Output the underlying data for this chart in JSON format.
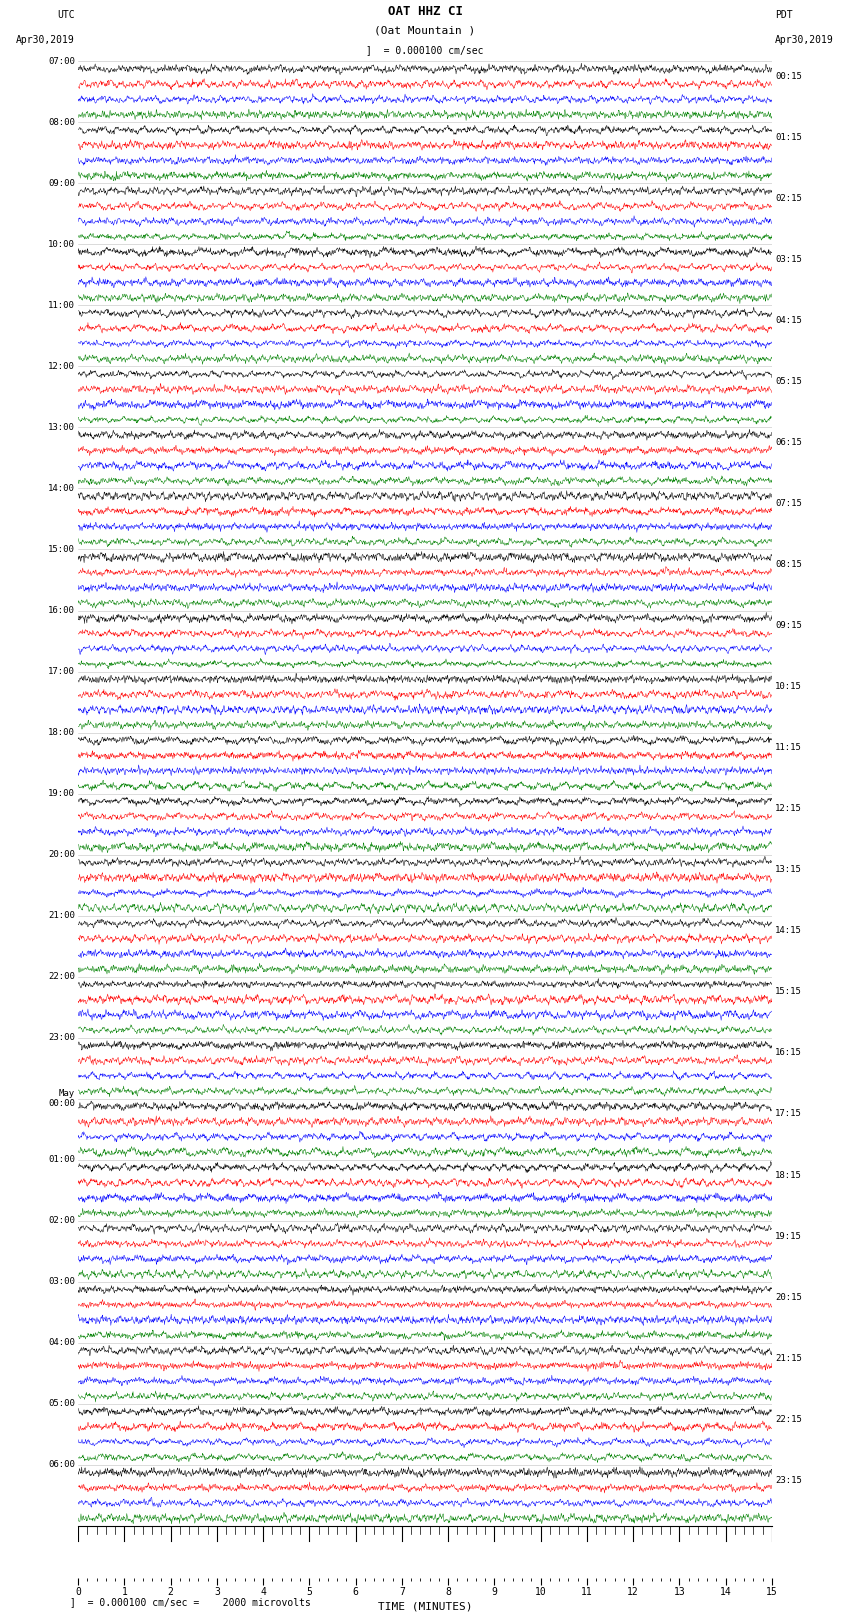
{
  "title_line1": "OAT HHZ CI",
  "title_line2": "(Oat Mountain )",
  "scale_text": "= 0.000100 cm/sec",
  "bottom_scale_text": "= 0.000100 cm/sec =    2000 microvolts",
  "left_label_top": "UTC",
  "left_label_date": "Apr30,2019",
  "right_label_top": "PDT",
  "right_label_date": "Apr30,2019",
  "xlabel": "TIME (MINUTES)",
  "left_times_utc": [
    "07:00",
    "08:00",
    "09:00",
    "10:00",
    "11:00",
    "12:00",
    "13:00",
    "14:00",
    "15:00",
    "16:00",
    "17:00",
    "18:00",
    "19:00",
    "20:00",
    "21:00",
    "22:00",
    "23:00",
    "May\n00:00",
    "01:00",
    "02:00",
    "03:00",
    "04:00",
    "05:00",
    "06:00"
  ],
  "right_times_pdt": [
    "00:15",
    "01:15",
    "02:15",
    "03:15",
    "04:15",
    "05:15",
    "06:15",
    "07:15",
    "08:15",
    "09:15",
    "10:15",
    "11:15",
    "12:15",
    "13:15",
    "14:15",
    "15:15",
    "16:15",
    "17:15",
    "18:15",
    "19:15",
    "20:15",
    "21:15",
    "22:15",
    "23:15"
  ],
  "num_hours": 24,
  "traces_per_hour": 4,
  "time_minutes": 15,
  "colors": [
    "black",
    "red",
    "blue",
    "green"
  ],
  "bg_color": "white",
  "trace_amplitude": 0.38,
  "fig_width": 8.5,
  "fig_height": 16.13,
  "dpi": 100
}
